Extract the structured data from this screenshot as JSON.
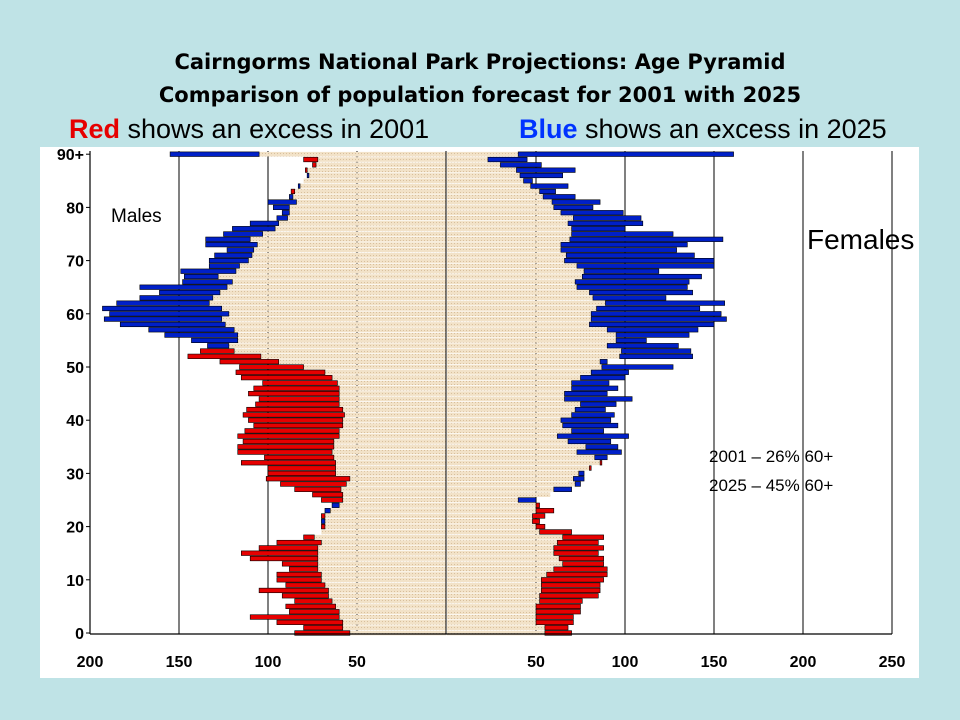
{
  "header": {
    "title_line1": "Cairngorms National Park Projections: Age Pyramid",
    "title_line2": "Comparison of  population forecast for 2001 with 2025"
  },
  "legend": {
    "red_word": "Red",
    "red_rest": " shows an excess  in 2001",
    "blue_word": "Blue",
    "blue_rest": " shows an excess in 2025"
  },
  "colors": {
    "background": "#bfe3e6",
    "excess_2001": "#e60000",
    "excess_2025": "#0020c8",
    "common_fill": "#f2e2c8",
    "common_dot": "#d8bf9c"
  },
  "chart_data": {
    "type": "bar",
    "orientation": "horizontal",
    "subtype": "population-pyramid",
    "title": "Cairngorms National Park Projections: Age Pyramid",
    "left_label": "Males",
    "right_label": "Females",
    "y_ticks": [
      "0",
      "10",
      "20",
      "30",
      "40",
      "50",
      "60",
      "70",
      "80",
      "90+"
    ],
    "x_ticks_left": [
      "200",
      "150",
      "100",
      "50"
    ],
    "x_ticks_right": [
      "50",
      "100",
      "150",
      "200",
      "250"
    ],
    "male_axis_range": [
      200,
      0
    ],
    "female_axis_range": [
      0,
      250
    ],
    "ages": [
      0,
      1,
      2,
      3,
      4,
      5,
      6,
      7,
      8,
      9,
      10,
      11,
      12,
      13,
      14,
      15,
      16,
      17,
      18,
      19,
      20,
      21,
      22,
      23,
      24,
      25,
      26,
      27,
      28,
      29,
      30,
      31,
      32,
      33,
      34,
      35,
      36,
      37,
      38,
      39,
      40,
      41,
      42,
      43,
      44,
      45,
      46,
      47,
      48,
      49,
      50,
      51,
      52,
      53,
      54,
      55,
      56,
      57,
      58,
      59,
      60,
      61,
      62,
      63,
      64,
      65,
      66,
      67,
      68,
      69,
      70,
      71,
      72,
      73,
      74,
      75,
      76,
      77,
      78,
      79,
      80,
      81,
      82,
      83,
      84,
      85,
      86,
      87,
      88,
      89,
      90
    ],
    "series": [
      {
        "name": "Males 2001",
        "values": [
          85,
          80,
          95,
          110,
          88,
          90,
          85,
          92,
          105,
          90,
          95,
          95,
          88,
          92,
          110,
          115,
          105,
          95,
          80,
          70,
          70,
          68,
          70,
          65,
          60,
          70,
          75,
          85,
          93,
          101,
          100,
          100,
          115,
          102,
          117,
          117,
          114,
          117,
          113,
          108,
          111,
          114,
          112,
          107,
          105,
          111,
          108,
          103,
          115,
          118,
          116,
          127,
          145,
          138,
          122,
          117,
          117,
          119,
          124,
          126,
          122,
          126,
          133,
          131,
          127,
          123,
          120,
          128,
          118,
          116,
          111,
          109,
          108,
          106,
          110,
          103,
          96,
          94,
          89,
          88,
          88,
          84,
          86,
          87,
          82,
          80,
          77,
          79,
          75,
          80,
          105
        ]
      },
      {
        "name": "Males 2025",
        "values": [
          54,
          58,
          58,
          60,
          60,
          62,
          64,
          66,
          66,
          68,
          70,
          70,
          72,
          72,
          72,
          72,
          72,
          70,
          74,
          70,
          68,
          70,
          68,
          68,
          64,
          58,
          58,
          59,
          56,
          54,
          62,
          62,
          62,
          63,
          64,
          63,
          63,
          60,
          60,
          58,
          58,
          57,
          58,
          60,
          60,
          60,
          60,
          61,
          64,
          68,
          80,
          94,
          104,
          119,
          134,
          143,
          158,
          167,
          183,
          192,
          189,
          193,
          185,
          172,
          161,
          172,
          148,
          147,
          149,
          133,
          133,
          130,
          123,
          135,
          135,
          125,
          120,
          110,
          95,
          92,
          97,
          100,
          88,
          85,
          83,
          80,
          78,
          78,
          73,
          72,
          155
        ]
      },
      {
        "name": "Females 2001",
        "values": [
          70,
          68,
          71,
          71,
          75,
          75,
          76,
          85,
          86,
          86,
          88,
          90,
          90,
          88,
          88,
          85,
          88,
          85,
          88,
          70,
          55,
          52,
          55,
          60,
          52,
          40,
          58,
          60,
          72,
          71,
          74,
          81,
          87,
          83,
          73,
          78,
          68,
          62,
          70,
          65,
          64,
          70,
          72,
          75,
          66,
          66,
          70,
          70,
          75,
          81,
          87,
          86,
          97,
          98,
          90,
          95,
          95,
          90,
          80,
          81,
          81,
          84,
          89,
          82,
          80,
          73,
          72,
          76,
          77,
          73,
          66,
          67,
          64,
          64,
          69,
          70,
          70,
          68,
          71,
          64,
          60,
          59,
          54,
          52,
          47,
          43,
          41,
          39,
          30,
          23,
          40
        ]
      },
      {
        "name": "Females 2025",
        "values": [
          55,
          55,
          50,
          50,
          50,
          50,
          52,
          52,
          53,
          53,
          53,
          56,
          60,
          65,
          63,
          60,
          60,
          62,
          65,
          52,
          50,
          48,
          48,
          50,
          50,
          50,
          58,
          70,
          75,
          77,
          77,
          80,
          86,
          90,
          98,
          96,
          92,
          102,
          88,
          96,
          92,
          94,
          89,
          95,
          104,
          90,
          96,
          91,
          100,
          102,
          127,
          90,
          138,
          137,
          130,
          112,
          136,
          141,
          150,
          157,
          154,
          142,
          156,
          123,
          138,
          135,
          136,
          143,
          119,
          150,
          150,
          139,
          129,
          135,
          155,
          127,
          100,
          110,
          109,
          99,
          82,
          86,
          72,
          61,
          68,
          48,
          65,
          72,
          53,
          45,
          161
        ]
      }
    ],
    "annotations": [
      "2001 – 26% 60+",
      "2025 – 45% 60+"
    ],
    "grid": true
  }
}
